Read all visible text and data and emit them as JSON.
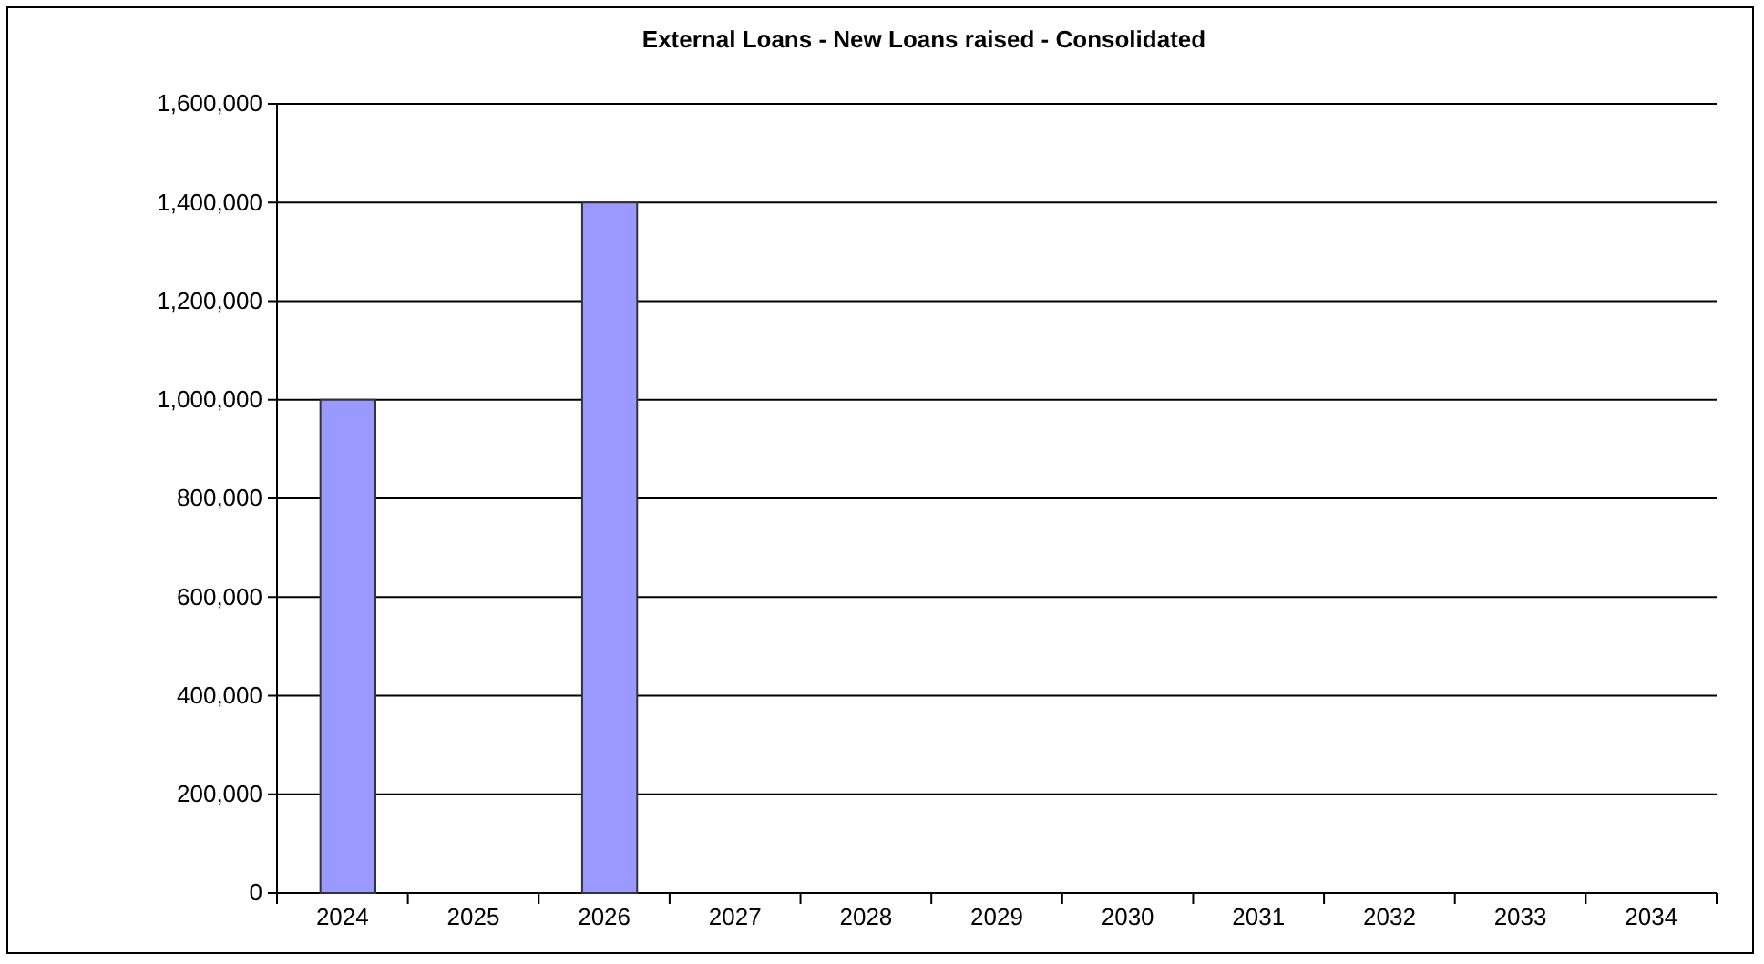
{
  "chart_data": {
    "type": "bar",
    "title": "External Loans - New Loans raised - Consolidated",
    "categories": [
      "2024",
      "2025",
      "2026",
      "2027",
      "2028",
      "2029",
      "2030",
      "2031",
      "2032",
      "2033",
      "2034"
    ],
    "values": [
      1000000,
      null,
      1400000,
      null,
      null,
      null,
      null,
      null,
      null,
      null,
      null
    ],
    "color": "#9999ff",
    "ylim": [
      0,
      1600000
    ],
    "yticks": [
      {
        "value": 0,
        "label": "0"
      },
      {
        "value": 200000,
        "label": "200,000"
      },
      {
        "value": 400000,
        "label": "400,000"
      },
      {
        "value": 600000,
        "label": "600,000"
      },
      {
        "value": 800000,
        "label": "800,000"
      },
      {
        "value": 1000000,
        "label": "1,000,000"
      },
      {
        "value": 1200000,
        "label": "1,200,000"
      },
      {
        "value": 1400000,
        "label": "1,400,000"
      },
      {
        "value": 1600000,
        "label": "1,600,000"
      }
    ],
    "grid": "y"
  }
}
